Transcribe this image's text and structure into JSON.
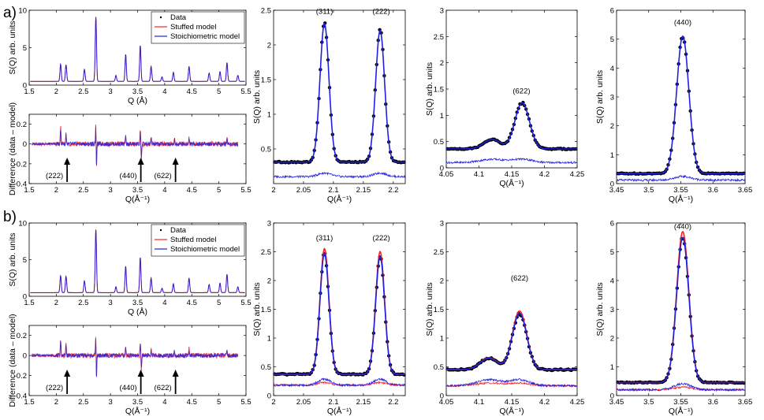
{
  "figure": {
    "row_labels": [
      "a)",
      "b)"
    ]
  },
  "colors": {
    "data": "#000000",
    "stuffed": "#ff2020",
    "stoich": "#2020e0"
  },
  "chart_data": [
    {
      "id": "a-overview",
      "type": "line",
      "row": "a",
      "ylabel": "S(Q) arb. units",
      "xlabel": "Q (Å)",
      "xlim": [
        1.5,
        5.5
      ],
      "ylim": [
        0,
        10
      ],
      "xticks": [
        "1.5",
        "2",
        "2.5",
        "3",
        "3.5",
        "4",
        "4.5",
        "5",
        "5.5"
      ],
      "yticks": [
        "0",
        "5",
        "10"
      ],
      "legend": [
        "Data",
        "Stuffed model",
        "Stoichiometric model"
      ],
      "peaks": [
        [
          2.08,
          2.3
        ],
        [
          2.18,
          2.2
        ],
        [
          2.52,
          1.6
        ],
        [
          2.73,
          8.6
        ],
        [
          3.1,
          0.8
        ],
        [
          3.28,
          3.6
        ],
        [
          3.55,
          4.8
        ],
        [
          3.75,
          2.0
        ],
        [
          3.95,
          0.6
        ],
        [
          4.16,
          1.2
        ],
        [
          4.45,
          2.0
        ],
        [
          4.82,
          1.1
        ],
        [
          5.02,
          1.3
        ],
        [
          5.15,
          2.5
        ],
        [
          5.35,
          0.8
        ]
      ],
      "background": 0.5
    },
    {
      "id": "a-difference",
      "type": "line",
      "row": "a",
      "ylabel": "Difference (data – model)",
      "xlabel": "Q(Å⁻¹)",
      "xlim": [
        1.5,
        5.5
      ],
      "ylim": [
        -0.4,
        0.3
      ],
      "xticks": [
        "1.5",
        "2",
        "2.5",
        "3",
        "3.5",
        "4",
        "4.5",
        "5",
        "5.5"
      ],
      "yticks": [
        "-0.4",
        "-0.2",
        "0",
        "0.2"
      ],
      "arrows": [
        {
          "label": "(222)",
          "x": 2.2
        },
        {
          "label": "(440)",
          "x": 3.56
        },
        {
          "label": "(622)",
          "x": 4.2
        }
      ]
    },
    {
      "id": "a-311-222",
      "type": "line",
      "row": "a",
      "title_labels": [
        {
          "text": "(311)",
          "x": 2.085,
          "y": 2.45
        },
        {
          "text": "(222)",
          "x": 2.18,
          "y": 2.45
        }
      ],
      "ylabel": "S(Q) arb. units",
      "xlabel": "Q(Å⁻¹)",
      "xlim": [
        2.0,
        2.22
      ],
      "ylim": [
        0.0,
        2.5
      ],
      "xticks": [
        "2",
        "2.05",
        "2.1",
        "2.15",
        "2.2"
      ],
      "yticks": [
        "0.5",
        "1",
        "1.5",
        "2",
        "2.5"
      ],
      "peaks": [
        [
          2.085,
          2.0,
          0.0075
        ],
        [
          2.178,
          1.9,
          0.0075
        ]
      ],
      "background": 0.31,
      "diff_offset": 0.1,
      "stuffed_diff": false
    },
    {
      "id": "a-622",
      "type": "line",
      "row": "a",
      "title_labels": [
        {
          "text": "(622)",
          "x": 4.165,
          "y": 1.42
        }
      ],
      "ylabel": "S(Q) arb. units",
      "xlabel": "Q(Å⁻¹)",
      "xlim": [
        4.05,
        4.25
      ],
      "ylim": [
        0.0,
        3.0
      ],
      "xticks": [
        "4.05",
        "4.1",
        "4.15",
        "4.2",
        "4.25"
      ],
      "yticks": [
        "0",
        "0.5",
        "1",
        "1.5",
        "2",
        "2.5",
        "3"
      ],
      "peaks": [
        [
          4.166,
          0.88,
          0.011
        ],
        [
          4.12,
          0.18,
          0.013
        ]
      ],
      "background": 0.36,
      "diff_offset": 0.1,
      "stuffed_diff": false
    },
    {
      "id": "a-440",
      "type": "line",
      "row": "a",
      "title_labels": [
        {
          "text": "(440)",
          "x": 3.553,
          "y": 5.5
        }
      ],
      "ylabel": "S(Q) arb. units",
      "xlabel": "Q(Å⁻¹)",
      "xlim": [
        3.45,
        3.65
      ],
      "ylim": [
        0,
        6
      ],
      "xticks": [
        "3.45",
        "3.5",
        "3.55",
        "3.6",
        "3.65"
      ],
      "yticks": [
        "0",
        "1",
        "2",
        "3",
        "4",
        "5",
        "6"
      ],
      "peaks": [
        [
          3.553,
          4.75,
          0.0095
        ]
      ],
      "background": 0.35,
      "diff_offset": 0.12,
      "stuffed_diff": false
    },
    {
      "id": "b-overview",
      "type": "line",
      "row": "b",
      "ylabel": "S(Q) arb. units",
      "xlabel": "Q (Å)",
      "xlim": [
        1.5,
        5.5
      ],
      "ylim": [
        0,
        10
      ],
      "xticks": [
        "1.5",
        "2",
        "2.5",
        "3",
        "3.5",
        "4",
        "4.5",
        "5",
        "5.5"
      ],
      "yticks": [
        "0",
        "5",
        "10"
      ],
      "legend": [
        "Data",
        "Stuffed model",
        "Stoichiometric model"
      ],
      "peaks": [
        [
          2.08,
          2.3
        ],
        [
          2.18,
          2.2
        ],
        [
          2.52,
          1.6
        ],
        [
          2.73,
          8.6
        ],
        [
          3.1,
          0.8
        ],
        [
          3.28,
          3.6
        ],
        [
          3.55,
          4.8
        ],
        [
          3.75,
          2.0
        ],
        [
          3.95,
          0.6
        ],
        [
          4.16,
          1.2
        ],
        [
          4.45,
          2.0
        ],
        [
          4.82,
          1.1
        ],
        [
          5.02,
          1.3
        ],
        [
          5.15,
          2.5
        ],
        [
          5.35,
          0.8
        ]
      ],
      "background": 0.5
    },
    {
      "id": "b-difference",
      "type": "line",
      "row": "b",
      "ylabel": "Difference (data – model)",
      "xlabel": "Q(Å⁻¹)",
      "xlim": [
        1.5,
        5.5
      ],
      "ylim": [
        -0.4,
        0.3
      ],
      "xticks": [
        "1.5",
        "2",
        "2.5",
        "3",
        "3.5",
        "4",
        "4.5",
        "5",
        "5.5"
      ],
      "yticks": [
        "-0.4",
        "-0.2",
        "0",
        "0.2"
      ],
      "arrows": [
        {
          "label": "(222)",
          "x": 2.2
        },
        {
          "label": "(440)",
          "x": 3.56
        },
        {
          "label": "(622)",
          "x": 4.2
        }
      ]
    },
    {
      "id": "b-311-222",
      "type": "line",
      "row": "b",
      "title_labels": [
        {
          "text": "(311)",
          "x": 2.085,
          "y": 2.7
        },
        {
          "text": "(222)",
          "x": 2.18,
          "y": 2.7
        }
      ],
      "ylabel": "S(Q) arb. units",
      "xlabel": "Q(Å⁻¹)",
      "xlim": [
        2.0,
        2.22
      ],
      "ylim": [
        0,
        3
      ],
      "xticks": [
        "2",
        "2.05",
        "2.1",
        "2.15",
        "2.2"
      ],
      "yticks": [
        "0",
        "0.5",
        "1",
        "1.5",
        "2",
        "2.5",
        "3"
      ],
      "peaks": [
        [
          2.085,
          2.1,
          0.0075
        ],
        [
          2.178,
          2.05,
          0.0075
        ]
      ],
      "background": 0.37,
      "diff_offset": 0.18,
      "stuffed_diff": true
    },
    {
      "id": "b-622",
      "type": "line",
      "row": "b",
      "title_labels": [
        {
          "text": "(622)",
          "x": 4.162,
          "y": 2.0
        }
      ],
      "ylabel": "S(Q) arb. units",
      "xlabel": "Q(Å⁻¹)",
      "xlim": [
        4.05,
        4.25
      ],
      "ylim": [
        0.0,
        3.0
      ],
      "xticks": [
        "4.05",
        "4.1",
        "4.15",
        "4.2",
        "4.25"
      ],
      "yticks": [
        "0",
        "0.5",
        "1",
        "1.5",
        "2",
        "2.5",
        "3"
      ],
      "peaks": [
        [
          4.162,
          0.98,
          0.011
        ],
        [
          4.115,
          0.2,
          0.013
        ]
      ],
      "background": 0.45,
      "diff_offset": 0.17,
      "stuffed_diff": true
    },
    {
      "id": "b-440",
      "type": "line",
      "row": "b",
      "title_labels": [
        {
          "text": "(440)",
          "x": 3.553,
          "y": 5.8
        }
      ],
      "ylabel": "S(Q) arb. units",
      "xlabel": "Q(Å⁻¹)",
      "xlim": [
        3.45,
        3.65
      ],
      "ylim": [
        0,
        6
      ],
      "xticks": [
        "3.45",
        "3.5",
        "3.55",
        "3.6",
        "3.65"
      ],
      "yticks": [
        "0",
        "1",
        "2",
        "3",
        "4",
        "5",
        "6"
      ],
      "peaks": [
        [
          3.553,
          5.05,
          0.0095
        ]
      ],
      "background": 0.45,
      "diff_offset": 0.2,
      "stuffed_diff": true
    }
  ]
}
